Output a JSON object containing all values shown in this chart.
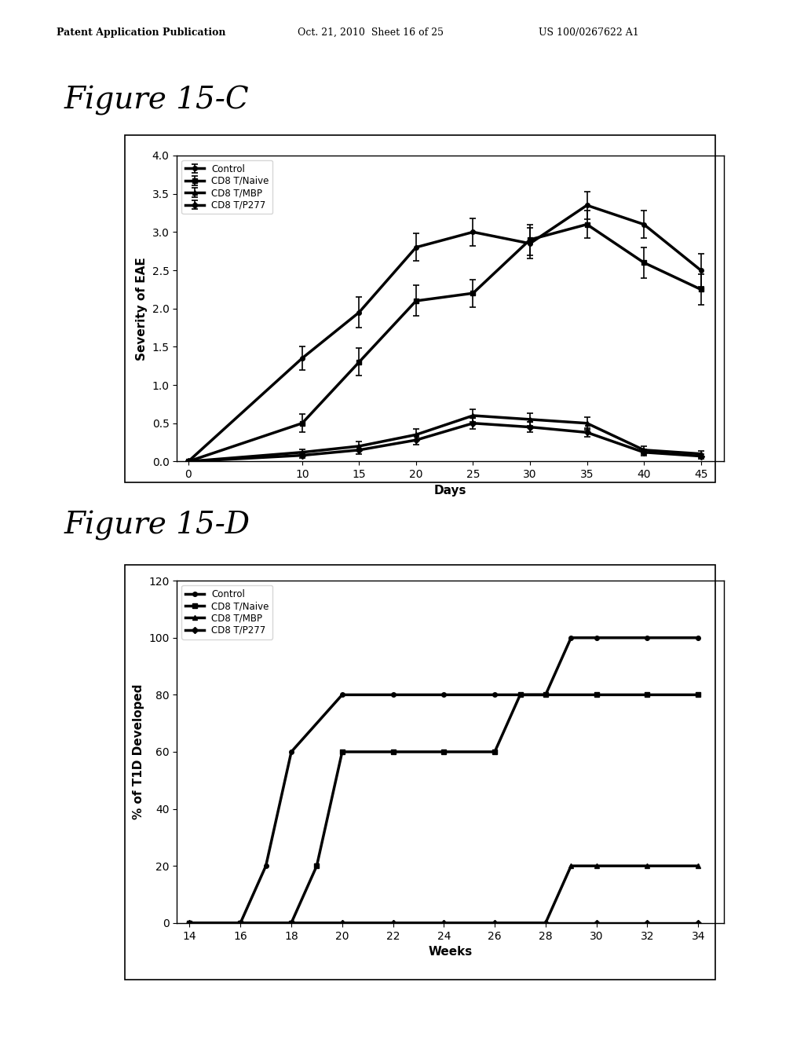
{
  "fig15c": {
    "xlabel": "Days",
    "ylabel": "Severity of EAE",
    "xlim": [
      -1,
      47
    ],
    "ylim": [
      0,
      4
    ],
    "xticks": [
      0,
      10,
      15,
      20,
      25,
      30,
      35,
      40,
      45
    ],
    "yticks": [
      0,
      0.5,
      1,
      1.5,
      2,
      2.5,
      3,
      3.5,
      4
    ],
    "series": [
      {
        "label": "Control",
        "x": [
          0,
          10,
          15,
          20,
          25,
          30,
          35,
          40,
          45
        ],
        "y": [
          0,
          1.35,
          1.95,
          2.8,
          3.0,
          2.85,
          3.35,
          3.1,
          2.5
        ],
        "yerr": [
          0,
          0.15,
          0.2,
          0.18,
          0.18,
          0.2,
          0.18,
          0.18,
          0.22
        ],
        "marker": "o",
        "lw": 2.5
      },
      {
        "label": "CD8 T/Naive",
        "x": [
          0,
          10,
          15,
          20,
          25,
          30,
          35,
          40,
          45
        ],
        "y": [
          0,
          0.5,
          1.3,
          2.1,
          2.2,
          2.9,
          3.1,
          2.6,
          2.25
        ],
        "yerr": [
          0,
          0.12,
          0.18,
          0.2,
          0.18,
          0.2,
          0.18,
          0.2,
          0.2
        ],
        "marker": "s",
        "lw": 2.5
      },
      {
        "label": "CD8 T/MBP",
        "x": [
          0,
          10,
          15,
          20,
          25,
          30,
          35,
          40,
          45
        ],
        "y": [
          0,
          0.12,
          0.2,
          0.35,
          0.6,
          0.55,
          0.5,
          0.15,
          0.1
        ],
        "yerr": [
          0,
          0.04,
          0.06,
          0.08,
          0.08,
          0.08,
          0.08,
          0.05,
          0.04
        ],
        "marker": "^",
        "lw": 2.5
      },
      {
        "label": "CD8 T/P277",
        "x": [
          0,
          10,
          15,
          20,
          25,
          30,
          35,
          40,
          45
        ],
        "y": [
          0,
          0.08,
          0.15,
          0.28,
          0.5,
          0.45,
          0.38,
          0.12,
          0.07
        ],
        "yerr": [
          0,
          0.03,
          0.05,
          0.06,
          0.07,
          0.07,
          0.06,
          0.04,
          0.03
        ],
        "marker": "D",
        "lw": 2.5
      }
    ]
  },
  "fig15d": {
    "xlabel": "Weeks",
    "ylabel": "% of T1D Developed",
    "xlim": [
      13.5,
      35
    ],
    "ylim": [
      0,
      120
    ],
    "xticks": [
      14,
      16,
      18,
      20,
      22,
      24,
      26,
      28,
      30,
      32,
      34
    ],
    "yticks": [
      0,
      20,
      40,
      60,
      80,
      100,
      120
    ],
    "series": [
      {
        "label": "Control",
        "x": [
          14,
          16,
          17,
          18,
          20,
          22,
          24,
          26,
          28,
          29,
          30,
          32,
          34
        ],
        "y": [
          0,
          0,
          20,
          60,
          80,
          80,
          80,
          80,
          80,
          100,
          100,
          100,
          100
        ],
        "marker": "o",
        "lw": 2.5
      },
      {
        "label": "CD8 T/Naive",
        "x": [
          14,
          16,
          18,
          19,
          20,
          22,
          24,
          26,
          27,
          28,
          30,
          32,
          34
        ],
        "y": [
          0,
          0,
          0,
          20,
          60,
          60,
          60,
          60,
          80,
          80,
          80,
          80,
          80
        ],
        "marker": "s",
        "lw": 2.5
      },
      {
        "label": "CD8 T/MBP",
        "x": [
          14,
          16,
          18,
          20,
          22,
          24,
          26,
          28,
          29,
          30,
          32,
          34
        ],
        "y": [
          0,
          0,
          0,
          0,
          0,
          0,
          0,
          0,
          20,
          20,
          20,
          20
        ],
        "marker": "^",
        "lw": 2.5
      },
      {
        "label": "CD8 T/P277",
        "x": [
          14,
          16,
          18,
          20,
          22,
          24,
          26,
          28,
          30,
          32,
          34
        ],
        "y": [
          0,
          0,
          0,
          0,
          0,
          0,
          0,
          0,
          0,
          0,
          0
        ],
        "marker": "D",
        "lw": 2.5
      }
    ]
  },
  "page_bg": "#ffffff",
  "plot_bg": "#ffffff",
  "header_left": "Patent Application Publication",
  "header_mid": "Oct. 21, 2010  Sheet 16 of 25",
  "header_right": "US 100/0267622 A1",
  "fig_label_c": "Figure 15-C",
  "fig_label_d": "Figure 15-D",
  "title_fontsize": 28,
  "axis_label_fontsize": 11,
  "tick_fontsize": 10,
  "legend_fontsize": 8.5,
  "header_fontsize": 9
}
